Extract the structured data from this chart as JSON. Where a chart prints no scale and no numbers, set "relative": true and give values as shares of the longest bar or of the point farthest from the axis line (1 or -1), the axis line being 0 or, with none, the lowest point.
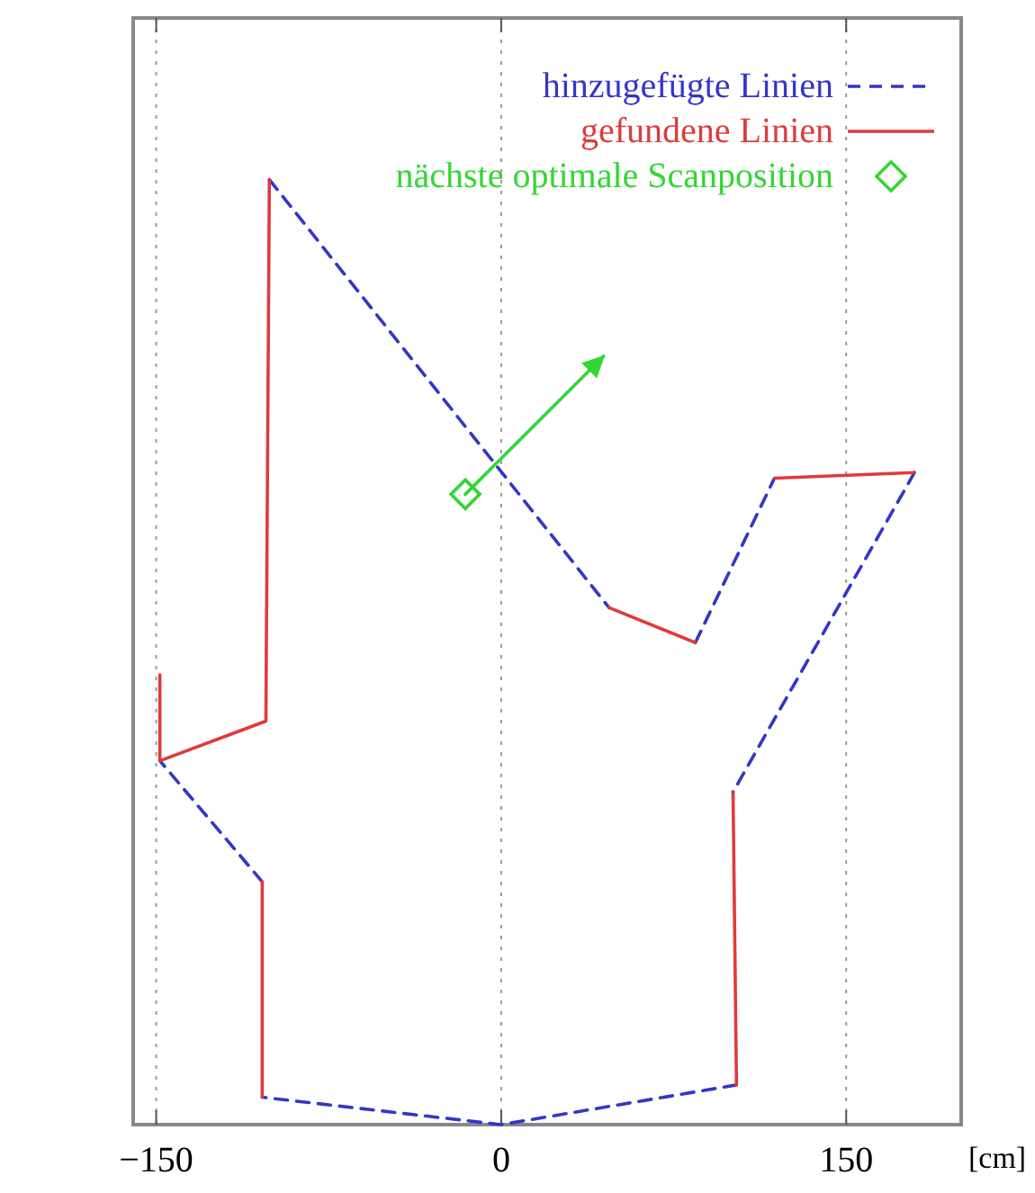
{
  "chart_data": {
    "type": "line",
    "relative": true,
    "xlabel": "[cm]",
    "xlim": [
      -160,
      200
    ],
    "xticks": [
      -150,
      0,
      150
    ],
    "tick_labels": "x",
    "grid": "x",
    "legend": "top right",
    "series": [
      {
        "name": "hinzugefügte Linien",
        "color": "#3535c8",
        "line_style": "dashed",
        "x": [
          -100.8,
          46.9,
          null,
          84.4,
          118.8,
          null,
          179.7,
          100.8,
          null,
          102.3,
          0,
          -103.9,
          null,
          -103.9,
          -148.4
        ],
        "values": [
          1.0,
          0.547,
          null,
          0.51,
          0.684,
          null,
          0.69,
          0.352,
          null,
          0.042,
          0,
          0.029,
          null,
          0.257,
          0.385
        ]
      },
      {
        "name": "gefundene Linien",
        "color": "#e03a3a",
        "line_style": "solid",
        "x": [
          46.9,
          84.4,
          null,
          118.8,
          179.7,
          null,
          100.8,
          102.3,
          null,
          -103.9,
          -103.9,
          null,
          -148.4,
          -148.4,
          -102.3,
          -100.8
        ],
        "values": [
          0.547,
          0.51,
          null,
          0.684,
          0.69,
          null,
          0.352,
          0.042,
          null,
          0.029,
          0.257,
          null,
          0.476,
          0.385,
          0.427,
          1.0
        ]
      },
      {
        "name": "nächste optimale Scanposition",
        "color": "#33d633",
        "type": "scatter",
        "marker": "diamond",
        "x": [
          -15.6
        ],
        "values": [
          0.667
        ]
      },
      {
        "color": "#33d633",
        "line_style": "solid",
        "x": [
          -15.6,
          44.5
        ],
        "values": [
          0.667,
          0.813
        ]
      }
    ]
  }
}
